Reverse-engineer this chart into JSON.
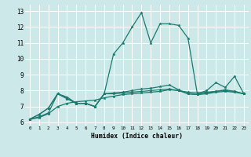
{
  "xlabel": "Humidex (Indice chaleur)",
  "ylabel": "",
  "xlim": [
    -0.5,
    23.5
  ],
  "ylim": [
    5.8,
    13.4
  ],
  "yticks": [
    6,
    7,
    8,
    9,
    10,
    11,
    12,
    13
  ],
  "xticks": [
    0,
    1,
    2,
    3,
    4,
    5,
    6,
    7,
    8,
    9,
    10,
    11,
    12,
    13,
    14,
    15,
    16,
    17,
    18,
    19,
    20,
    21,
    22,
    23
  ],
  "bg_color": "#cde8e8",
  "grid_color": "#ffffff",
  "line_color": "#1a7a6e",
  "series": [
    {
      "x": [
        0,
        1,
        2,
        3,
        4,
        5,
        6,
        7,
        8,
        9,
        10,
        11,
        12,
        13,
        14,
        15,
        16,
        17,
        18,
        19,
        20,
        21,
        22,
        23
      ],
      "y": [
        6.2,
        6.5,
        6.9,
        7.8,
        7.6,
        7.2,
        7.2,
        7.0,
        7.8,
        10.3,
        11.0,
        12.0,
        12.9,
        11.0,
        12.2,
        12.2,
        12.1,
        11.3,
        7.8,
        8.0,
        8.5,
        8.2,
        8.9,
        7.8
      ]
    },
    {
      "x": [
        0,
        1,
        2,
        3,
        4,
        5,
        6,
        7,
        8,
        9,
        10,
        11,
        12,
        13,
        14,
        15,
        16,
        17,
        18,
        19,
        20,
        21,
        22,
        23
      ],
      "y": [
        6.2,
        6.5,
        6.9,
        7.8,
        7.5,
        7.2,
        7.2,
        7.0,
        7.8,
        7.85,
        7.9,
        8.0,
        8.1,
        8.15,
        8.25,
        8.35,
        8.05,
        7.8,
        7.75,
        7.85,
        7.95,
        8.05,
        7.95,
        7.8
      ]
    },
    {
      "x": [
        0,
        1,
        2,
        3,
        4,
        5,
        6,
        7,
        8,
        9,
        10,
        11,
        12,
        13,
        14,
        15,
        16,
        17,
        18,
        19,
        20,
        21,
        22,
        23
      ],
      "y": [
        6.2,
        6.35,
        6.6,
        7.8,
        7.5,
        7.2,
        7.2,
        7.0,
        7.8,
        7.8,
        7.85,
        7.9,
        7.95,
        8.0,
        8.05,
        8.1,
        8.0,
        7.8,
        7.75,
        7.8,
        7.9,
        7.95,
        7.9,
        7.8
      ]
    },
    {
      "x": [
        0,
        1,
        2,
        3,
        4,
        5,
        6,
        7,
        8,
        9,
        10,
        11,
        12,
        13,
        14,
        15,
        16,
        17,
        18,
        19,
        20,
        21,
        22,
        23
      ],
      "y": [
        6.2,
        6.3,
        6.55,
        7.0,
        7.2,
        7.3,
        7.35,
        7.4,
        7.55,
        7.65,
        7.75,
        7.8,
        7.85,
        7.9,
        7.95,
        8.05,
        8.0,
        7.9,
        7.85,
        7.9,
        7.95,
        8.0,
        7.95,
        7.8
      ]
    }
  ]
}
